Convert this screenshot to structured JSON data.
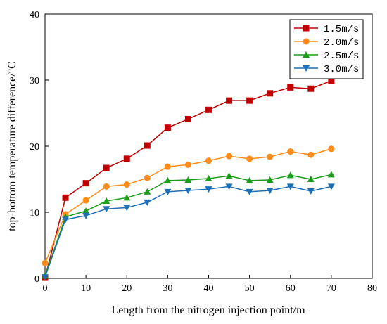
{
  "chart_data": {
    "type": "line",
    "xlabel": "Length from the nitrogen injection point/m",
    "ylabel": "top-bottom temperature difference/°C",
    "xlim": [
      0,
      80
    ],
    "ylim": [
      0,
      40
    ],
    "xticks": [
      0,
      10,
      20,
      30,
      40,
      50,
      60,
      70,
      80
    ],
    "yticks": [
      0,
      10,
      20,
      30,
      40
    ],
    "grid": false,
    "legend_position": "top-right",
    "x": [
      0,
      5,
      10,
      15,
      20,
      25,
      30,
      35,
      40,
      45,
      50,
      55,
      60,
      65,
      70
    ],
    "series": [
      {
        "name": "1.5m/s",
        "color": "#c00000",
        "marker": "square",
        "values": [
          0.1,
          12.2,
          14.4,
          16.7,
          18.1,
          20.1,
          22.8,
          24.1,
          25.5,
          26.9,
          26.9,
          28.0,
          28.9,
          28.7,
          29.9
        ]
      },
      {
        "name": "2.0m/s",
        "color": "#ff8c1a",
        "marker": "circle",
        "values": [
          2.3,
          9.7,
          11.8,
          13.9,
          14.2,
          15.2,
          16.9,
          17.2,
          17.8,
          18.5,
          18.1,
          18.4,
          19.2,
          18.7,
          19.6
        ]
      },
      {
        "name": "2.5m/s",
        "color": "#1a9e1a",
        "marker": "triangle-up",
        "values": [
          0.4,
          9.3,
          10.2,
          11.7,
          12.2,
          13.1,
          14.8,
          14.9,
          15.1,
          15.5,
          14.8,
          14.9,
          15.6,
          15.0,
          15.7
        ]
      },
      {
        "name": "3.0m/s",
        "color": "#1f6fb5",
        "marker": "triangle-down",
        "values": [
          0.2,
          8.9,
          9.5,
          10.5,
          10.7,
          11.5,
          13.1,
          13.3,
          13.5,
          13.9,
          13.1,
          13.3,
          13.9,
          13.2,
          13.9
        ]
      }
    ]
  }
}
